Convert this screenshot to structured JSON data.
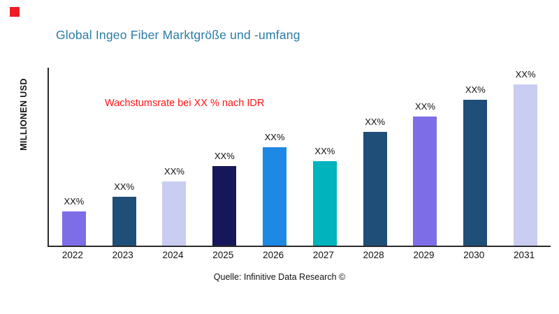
{
  "page": {
    "title": "Global Ingeo Fiber Marktgröße und -umfang",
    "title_color": "#2a7ca5",
    "brand_marker_color": "#ee1c25",
    "source": "Quelle: Infinitive Data Research ©"
  },
  "chart_data": {
    "type": "bar",
    "title": "Global Ingeo Fiber Marktgröße und -umfang",
    "xlabel": "",
    "ylabel": "MILLIONEN USD",
    "annotation": "Wachstumsrate bei XX % nach IDR",
    "annotation_color": "#ff1616",
    "categories": [
      "2022",
      "2023",
      "2024",
      "2025",
      "2026",
      "2027",
      "2028",
      "2029",
      "2030",
      "2031"
    ],
    "values": [
      20,
      29,
      38,
      47,
      58,
      50,
      67,
      76,
      86,
      95
    ],
    "bar_labels": [
      "XX%",
      "XX%",
      "XX%",
      "XX%",
      "XX%",
      "XX%",
      "XX%",
      "XX%",
      "XX%",
      "XX%"
    ],
    "bar_colors": [
      "#7d6ee8",
      "#1f4e79",
      "#c9cdf2",
      "#16165a",
      "#1e88e5",
      "#00b3bd",
      "#1f4e79",
      "#7d6ee8",
      "#1f4e79",
      "#c9cdf2"
    ],
    "ylim": [
      0,
      105
    ],
    "grid": false,
    "legend": false,
    "axis_color": "#2b2b2b"
  }
}
